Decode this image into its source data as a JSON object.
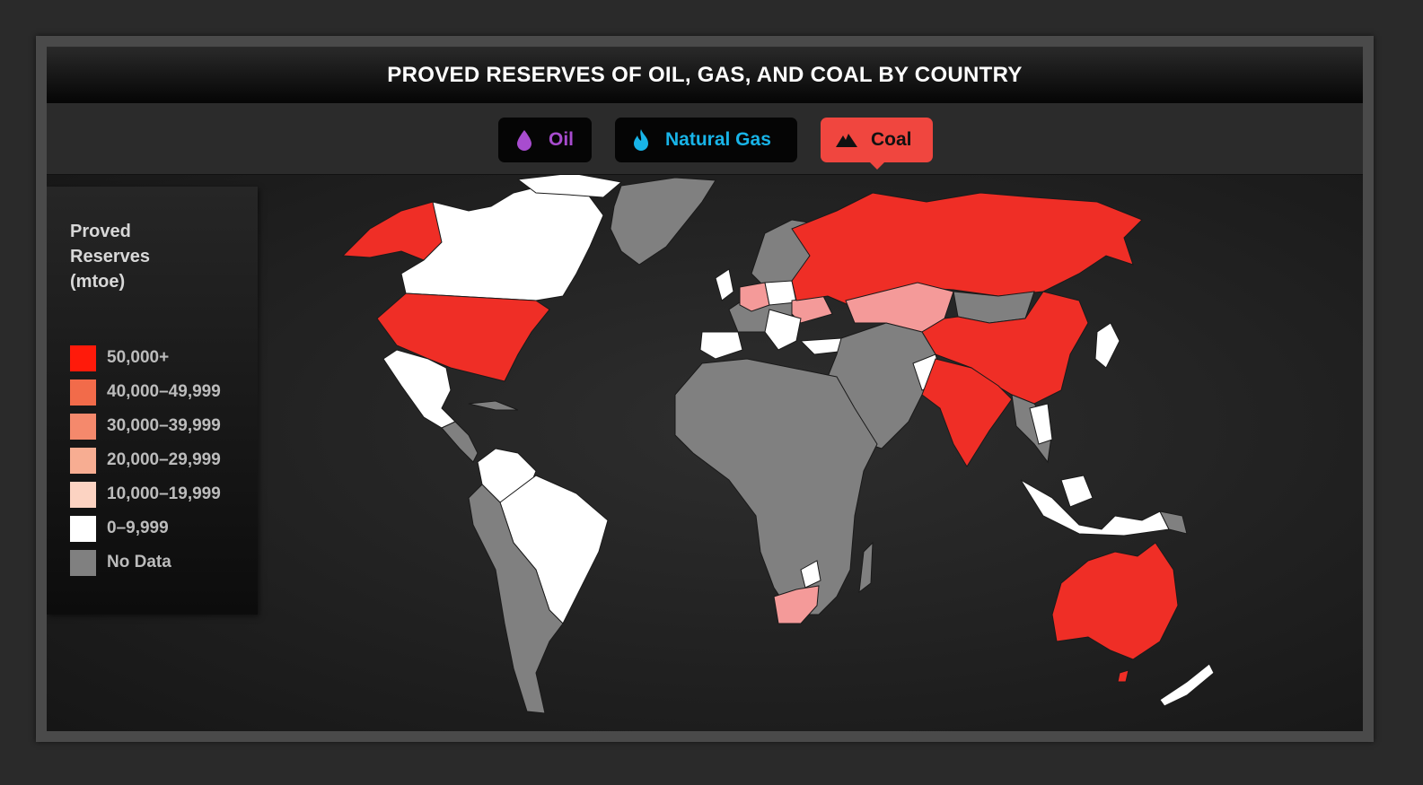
{
  "title": "PROVED RESERVES OF OIL, GAS, AND COAL BY COUNTRY",
  "tabs": [
    {
      "label": "Oil",
      "icon": "oil-drop-icon",
      "color": "#a84ccf",
      "active": false
    },
    {
      "label": "Natural Gas",
      "icon": "flame-icon",
      "color": "#18b4e8",
      "active": false
    },
    {
      "label": "Coal",
      "icon": "mountain-icon",
      "color": "#f0463f",
      "active": true
    }
  ],
  "legend": {
    "title": "Proved Reserves (mtoe)",
    "items": [
      {
        "label": "50,000+",
        "color": "#ff1a0a"
      },
      {
        "label": "40,000–49,999",
        "color": "#f26b4a"
      },
      {
        "label": "30,000–39,999",
        "color": "#f5896c"
      },
      {
        "label": "20,000–29,999",
        "color": "#f7ad92"
      },
      {
        "label": "10,000–19,999",
        "color": "#fcd3c2"
      },
      {
        "label": "0–9,999",
        "color": "#ffffff"
      },
      {
        "label": "No Data",
        "color": "#808080"
      }
    ]
  },
  "colors": {
    "top": "#ef2e26",
    "mid": "#f49a99",
    "low": "#ffffff",
    "nodata": "#808080"
  }
}
